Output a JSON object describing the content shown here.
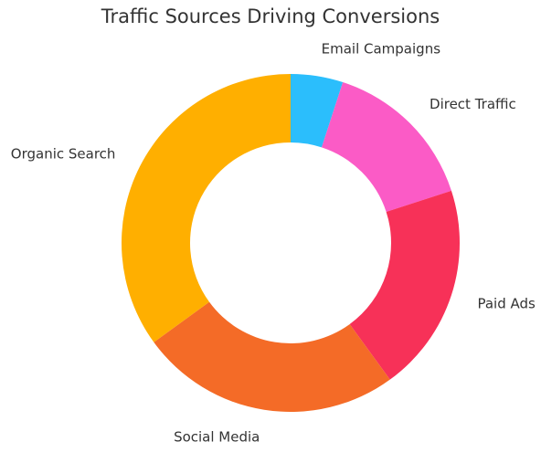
{
  "chart_data": {
    "type": "pie",
    "donut": true,
    "title": "Traffic Sources Driving Conversions",
    "start_angle_deg": 90,
    "direction": "clockwise",
    "slices": [
      {
        "label": "Email Campaigns",
        "value": 5,
        "color": "#2BBEFC"
      },
      {
        "label": "Direct Traffic",
        "value": 15,
        "color": "#FB5BC6"
      },
      {
        "label": "Paid Ads",
        "value": 20,
        "color": "#F73158"
      },
      {
        "label": "Social Media",
        "value": 25,
        "color": "#F46B27"
      },
      {
        "label": "Organic Search",
        "value": 35,
        "color": "#FFAF00"
      }
    ]
  }
}
